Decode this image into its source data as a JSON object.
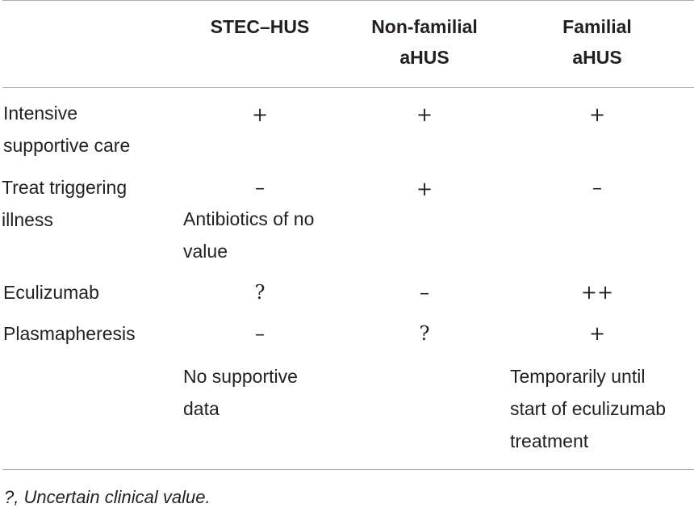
{
  "table": {
    "headers": {
      "stec": "STEC–HUS",
      "nonfamilial": "Non-familial\naHUS",
      "familial": "Familial\naHUS"
    },
    "rows": [
      {
        "label": "Intensive\nsupportive care",
        "stec": "+",
        "nonfamilial": "+",
        "familial": "+"
      },
      {
        "label": "Treat triggering\nillness",
        "stec": "–",
        "stec_note": "Antibiotics of no\nvalue",
        "nonfamilial": "+",
        "familial": "–"
      },
      {
        "label": "Eculizumab",
        "stec": "?",
        "nonfamilial": "–",
        "familial": "++"
      },
      {
        "label": "Plasmapheresis",
        "stec": "–",
        "stec_note": "No supportive\ndata",
        "nonfamilial": "?",
        "familial": "+",
        "familial_note": "Temporarily until\nstart of eculizumab\ntreatment"
      }
    ]
  },
  "footnote": "?, Uncertain clinical value."
}
